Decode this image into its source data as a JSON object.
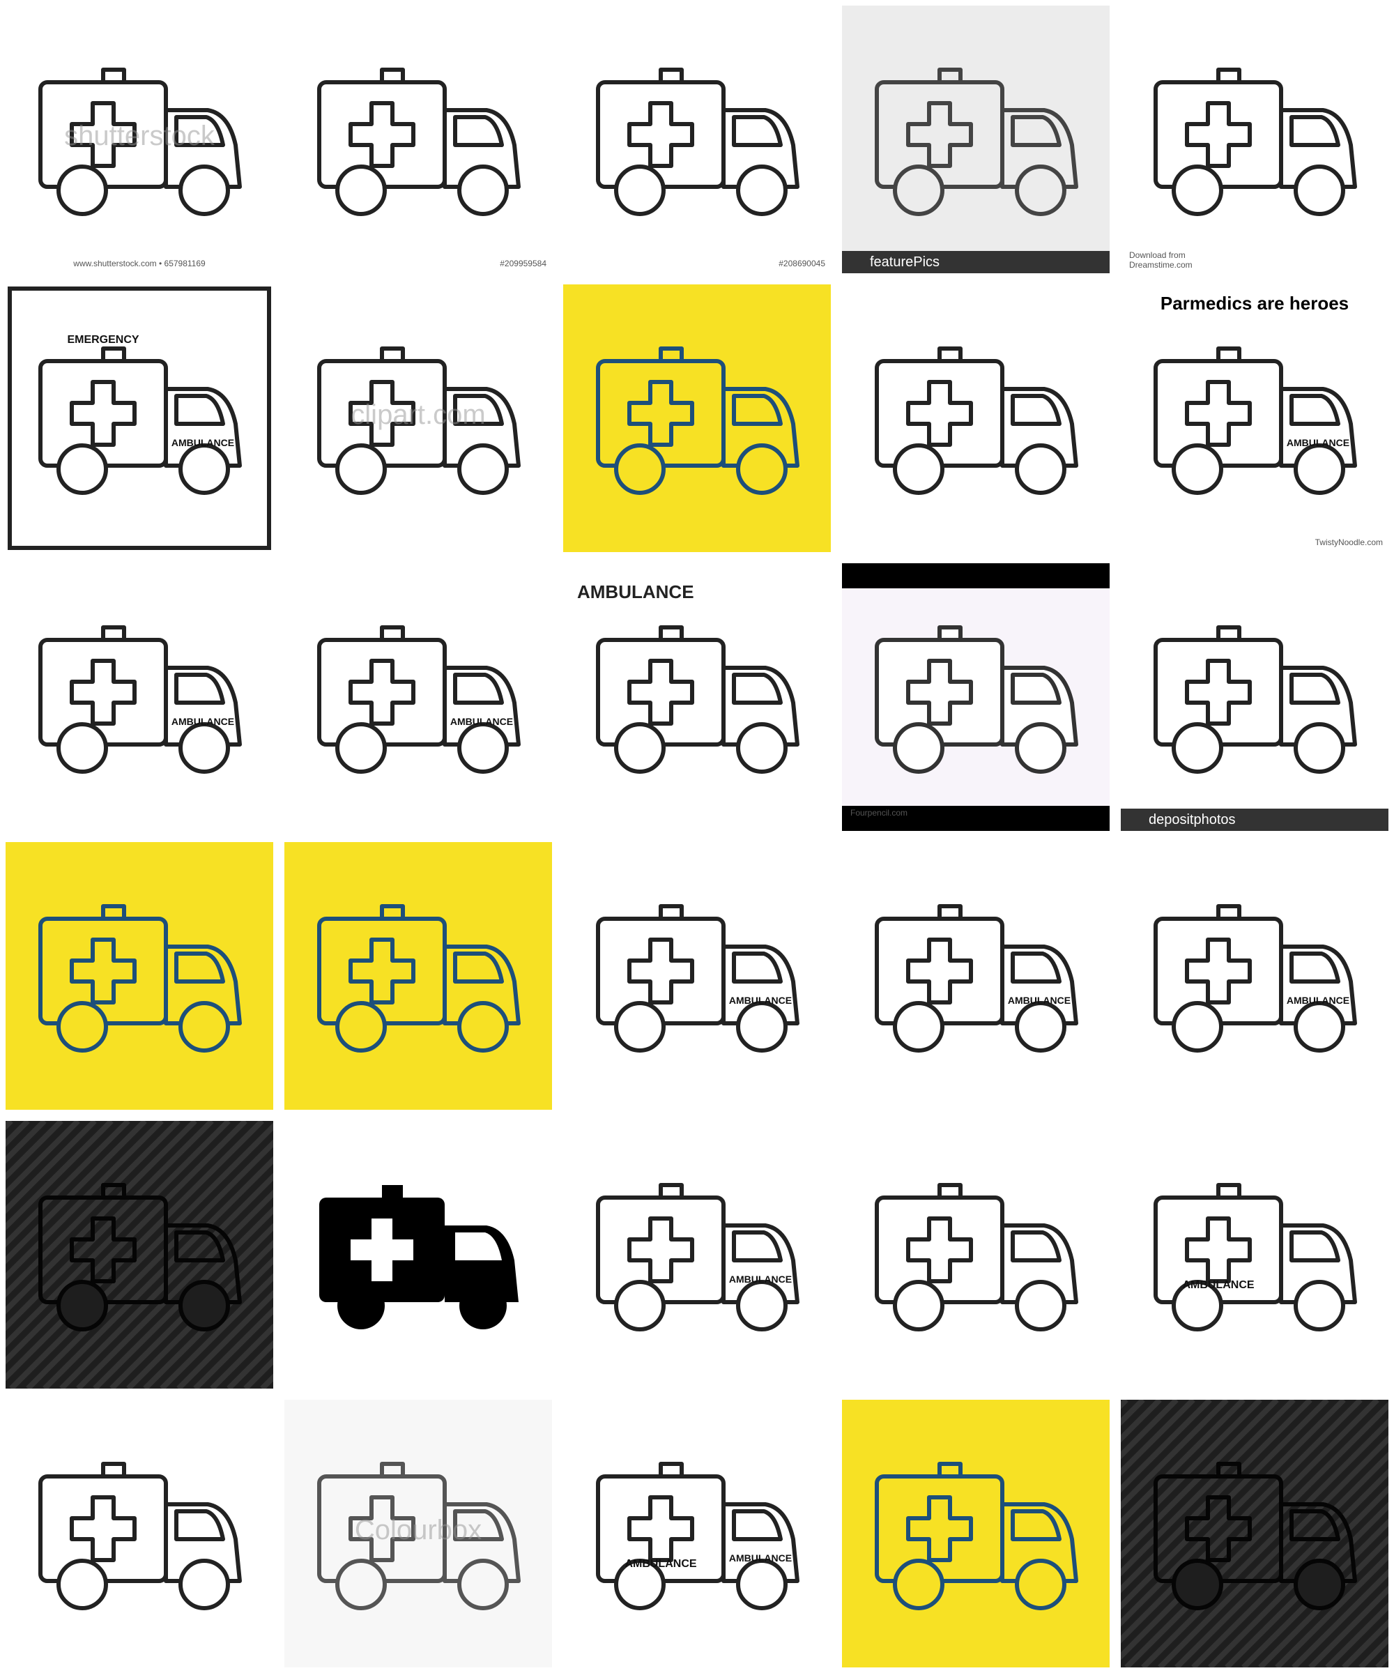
{
  "tiles": [
    [
      "shutterstock",
      "www.shutterstock.com • 657981169"
    ],
    [
      "#209959584"
    ],
    [
      "#208690045"
    ],
    [
      "featurePics"
    ],
    [
      "Download from",
      "Dreamstime.com"
    ],
    [
      "AMBULANCE",
      "EMERGENCY"
    ],
    [
      "clipart.com"
    ],
    [],
    [],
    [
      "Parmedics are heroes",
      "AMBULANCE",
      "TwistyNoodle.com"
    ],
    [
      "AMBULANCE"
    ],
    [
      "AMBULANCE"
    ],
    [
      "AMBULANCE"
    ],
    [
      "Fourpencil.com"
    ],
    [
      "depositphotos"
    ],
    [],
    [],
    [
      "AMBULANCE"
    ],
    [
      "AMBULANCE"
    ],
    [
      "AMBULANCE"
    ],
    [],
    [],
    [
      "AMBULANCE"
    ],
    [],
    [
      "AMBULANCE"
    ],
    [],
    [
      "Colourbox"
    ],
    [
      "AMBULANCE",
      "AMBULANCE"
    ],
    [],
    []
  ]
}
